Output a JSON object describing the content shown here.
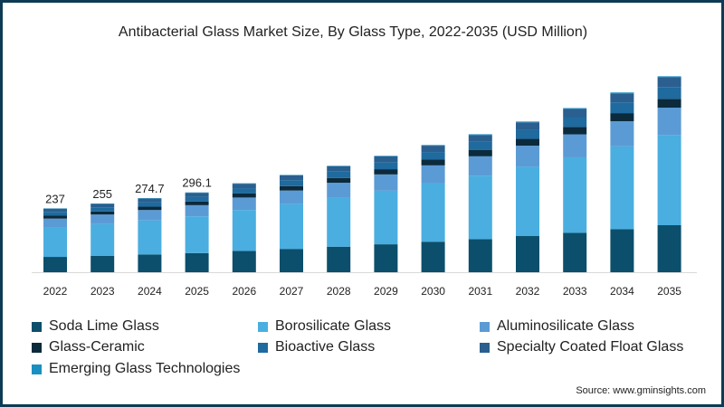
{
  "chart_data": {
    "type": "bar",
    "stacked": true,
    "title": "Antibacterial Glass Market Size, By Glass Type, 2022-2035 (USD Million)",
    "xlabel": "",
    "ylabel": "",
    "ylim": [
      0,
      750
    ],
    "grid": false,
    "legend_position": "bottom",
    "categories": [
      "2022",
      "2023",
      "2024",
      "2025",
      "2026",
      "2027",
      "2028",
      "2029",
      "2030",
      "2031",
      "2032",
      "2033",
      "2034",
      "2035"
    ],
    "data_labels": [
      "237",
      "255",
      "274.7",
      "296.1",
      "",
      "",
      "",
      "",
      "",
      "",
      "",
      "",
      "",
      ""
    ],
    "series": [
      {
        "name": "Soda Lime Glass",
        "color": "#0b4f6c",
        "values": [
          56.9,
          61.2,
          65.9,
          71.1,
          79.2,
          86.6,
          94.8,
          103.7,
          113.3,
          122.9,
          134.2,
          146.2,
          160.1,
          174.5
        ]
      },
      {
        "name": "Borosilicate Glass",
        "color": "#4aaee0",
        "values": [
          109.0,
          117.3,
          126.4,
          136.2,
          151.8,
          166.1,
          181.7,
          198.7,
          217.1,
          235.5,
          257.1,
          280.1,
          306.8,
          334.4
        ]
      },
      {
        "name": "Aluminosilicate Glass",
        "color": "#5b9bd5",
        "values": [
          33.2,
          35.7,
          38.5,
          41.5,
          46.2,
          50.5,
          55.3,
          60.5,
          66.1,
          71.7,
          78.3,
          85.3,
          93.4,
          101.8
        ]
      },
      {
        "name": "Glass-Ceramic",
        "color": "#0b2a3c",
        "values": [
          10.7,
          11.5,
          12.4,
          13.3,
          14.9,
          16.2,
          17.8,
          19.4,
          21.2,
          23.0,
          25.2,
          27.4,
          30.0,
          32.7
        ]
      },
      {
        "name": "Bioactive Glass",
        "color": "#1f6a9e",
        "values": [
          14.2,
          15.3,
          16.5,
          17.8,
          19.8,
          21.7,
          23.7,
          25.9,
          28.3,
          30.7,
          33.5,
          36.5,
          40.0,
          43.6
        ]
      },
      {
        "name": "Specialty Coated Float Glass",
        "color": "#2a5f8f",
        "values": [
          11.9,
          12.7,
          13.7,
          14.8,
          16.5,
          18.1,
          19.8,
          21.6,
          23.6,
          25.6,
          28.0,
          30.5,
          33.4,
          36.4
        ]
      },
      {
        "name": "Emerging Glass Technologies",
        "color": "#1a8fc0",
        "values": [
          1.2,
          1.3,
          1.4,
          1.5,
          1.7,
          1.8,
          2.0,
          2.2,
          2.4,
          2.6,
          2.8,
          3.0,
          3.3,
          3.6
        ]
      }
    ]
  },
  "source": "Source: www.gminsights.com"
}
